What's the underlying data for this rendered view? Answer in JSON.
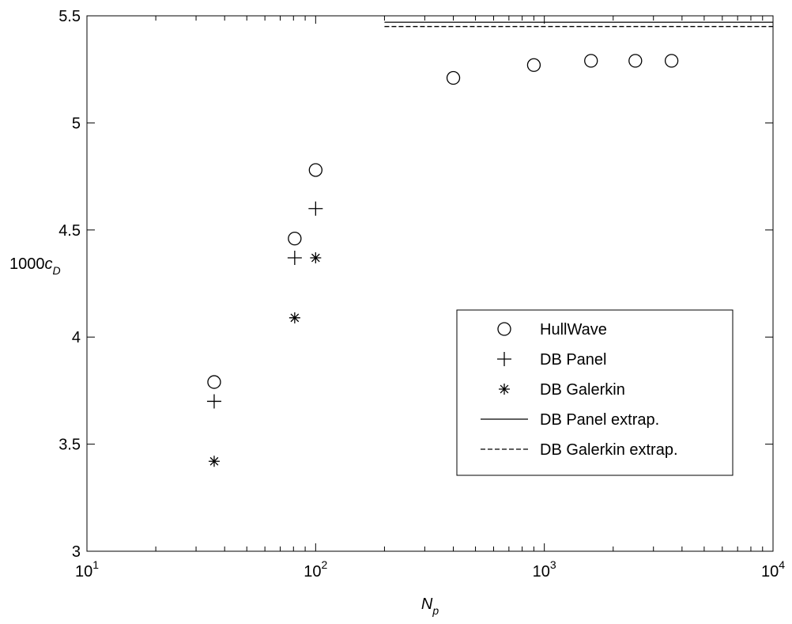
{
  "chart_data": {
    "type": "scatter",
    "xlabel": [
      "N",
      "p"
    ],
    "ylabel": [
      "1000",
      "c",
      "D"
    ],
    "xscale": "log",
    "xlim": [
      10,
      10000
    ],
    "ylim": [
      3,
      5.5
    ],
    "xticks": [
      {
        "value": 10,
        "label": "10",
        "exponent": "1"
      },
      {
        "value": 100,
        "label": "10",
        "exponent": "2"
      },
      {
        "value": 1000,
        "label": "10",
        "exponent": "3"
      },
      {
        "value": 10000,
        "label": "10",
        "exponent": "4"
      }
    ],
    "yticks": [
      3,
      3.5,
      4,
      4.5,
      5,
      5.5
    ],
    "grid": false,
    "legend": "lower right",
    "series": [
      {
        "name": "HullWave",
        "color": "#000000",
        "marker": "o",
        "linestyle": "none",
        "x": [
          36,
          81,
          100,
          400,
          900,
          1600,
          2500,
          3600
        ],
        "values": [
          3.79,
          4.46,
          4.78,
          5.21,
          5.27,
          5.29,
          5.29,
          5.29
        ]
      },
      {
        "name": "DB Panel",
        "color": "#000000",
        "marker": "+",
        "linestyle": "none",
        "x": [
          36,
          81,
          100
        ],
        "values": [
          3.7,
          4.37,
          4.6
        ]
      },
      {
        "name": "DB Galerkin",
        "color": "#000000",
        "marker": "*",
        "linestyle": "none",
        "x": [
          36,
          81,
          100
        ],
        "values": [
          3.42,
          4.09,
          4.37
        ]
      },
      {
        "name": "DB Panel extrap.",
        "color": "#000000",
        "marker": "none",
        "linestyle": "-",
        "x": [
          200,
          10000
        ],
        "values": [
          5.47,
          5.47
        ]
      },
      {
        "name": "DB Galerkin extrap.",
        "color": "#000000",
        "marker": "none",
        "linestyle": "--",
        "x": [
          200,
          10000
        ],
        "values": [
          5.45,
          5.45
        ]
      }
    ]
  }
}
